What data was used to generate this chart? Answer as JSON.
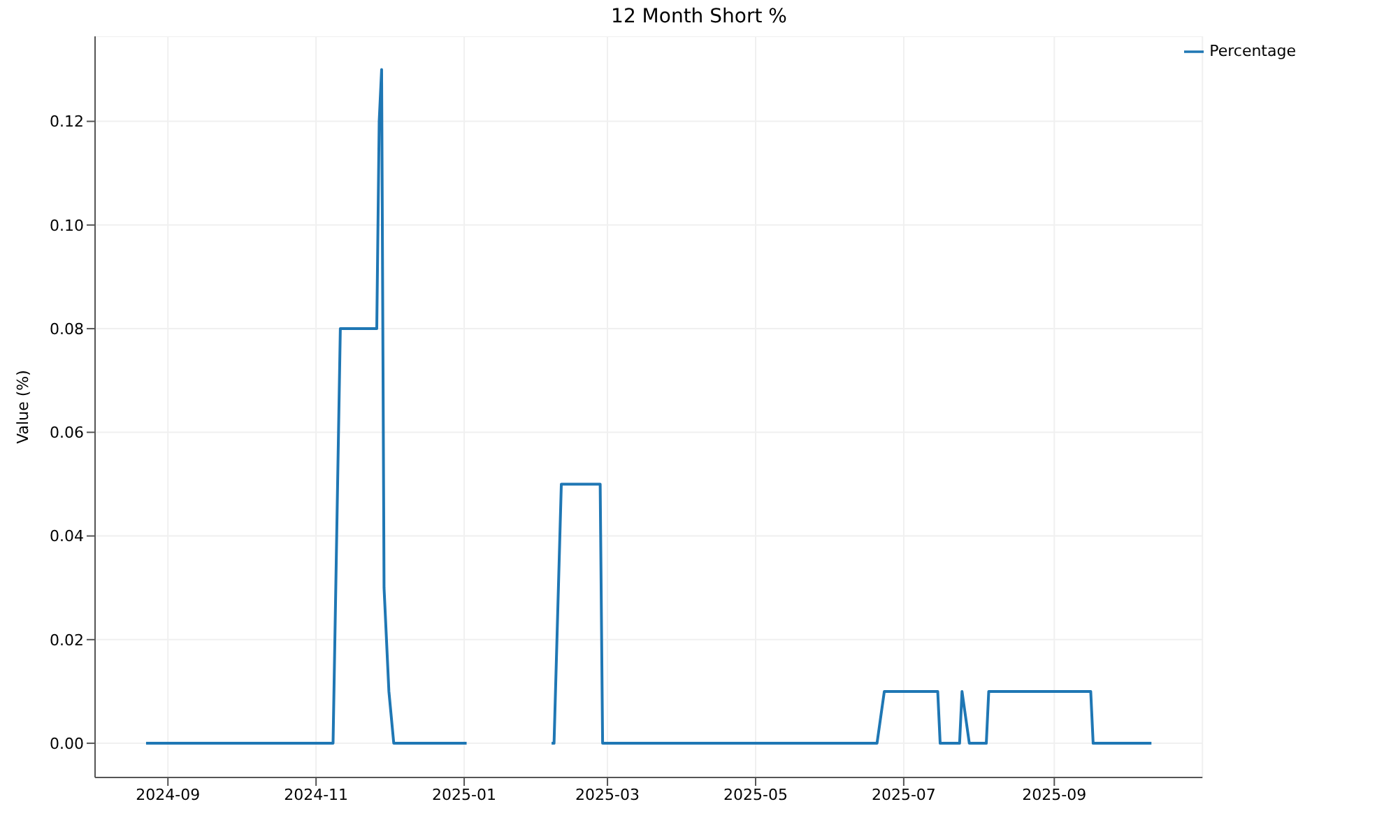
{
  "chart_data": {
    "type": "line",
    "title": "12 Month Short %",
    "ylabel": "Value (%)",
    "x": [
      "2024-08-23",
      "2024-11-08",
      "2024-11-11",
      "2024-11-26",
      "2024-11-27",
      "2024-11-28",
      "2024-11-29",
      "2024-12-01",
      "2024-12-03",
      "2025-01-02",
      "2025-01-20",
      "2025-02-06",
      "2025-02-07",
      "2025-02-10",
      "2025-02-26",
      "2025-02-27",
      "2025-06-20",
      "2025-06-23",
      "2025-07-15",
      "2025-07-16",
      "2025-07-24",
      "2025-07-25",
      "2025-07-28",
      "2025-08-04",
      "2025-08-05",
      "2025-09-16",
      "2025-09-17",
      "2025-10-11"
    ],
    "series": [
      {
        "name": "Percentage",
        "color": "#1f77b4",
        "values": [
          0,
          0,
          0.08,
          0.08,
          0.12,
          0.13,
          0.03,
          0.01,
          0,
          0,
          null,
          0,
          0,
          0.05,
          0.05,
          0,
          0,
          0.01,
          0.01,
          0,
          0,
          0.01,
          0,
          0,
          0.01,
          0.01,
          0,
          0
        ]
      }
    ],
    "xlim": [
      "2024-08-02",
      "2025-11-01"
    ],
    "xticks": [
      {
        "value": "2024-09-01",
        "label": "2024-09"
      },
      {
        "value": "2024-11-01",
        "label": "2024-11"
      },
      {
        "value": "2025-01-01",
        "label": "2025-01"
      },
      {
        "value": "2025-03-01",
        "label": "2025-03"
      },
      {
        "value": "2025-05-01",
        "label": "2025-05"
      },
      {
        "value": "2025-07-01",
        "label": "2025-07"
      },
      {
        "value": "2025-09-01",
        "label": "2025-09"
      }
    ],
    "ylim": [
      -0.0066,
      0.1364
    ],
    "yticks": [
      {
        "value": 0,
        "label": "0.00"
      },
      {
        "value": 0.02,
        "label": "0.02"
      },
      {
        "value": 0.04,
        "label": "0.04"
      },
      {
        "value": 0.06,
        "label": "0.06"
      },
      {
        "value": 0.08,
        "label": "0.08"
      },
      {
        "value": 0.1,
        "label": "0.10"
      },
      {
        "value": 0.12,
        "label": "0.12"
      }
    ],
    "grid": true,
    "legend": "top right",
    "marker": "none",
    "line_style": "solid"
  }
}
